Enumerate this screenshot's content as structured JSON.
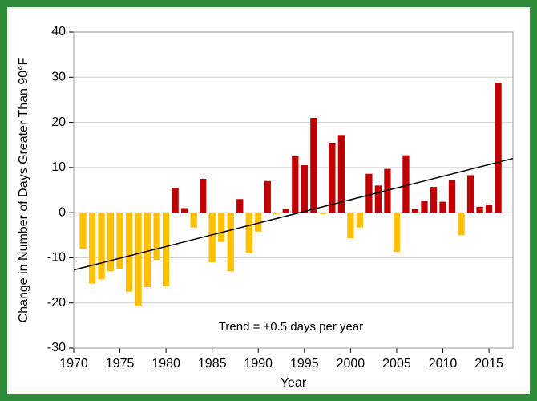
{
  "chart_data": {
    "type": "bar",
    "y_label": "Change in Number of Days Greater Than 90°F",
    "x_label": "Year",
    "annotation": "Trend = +0.5 days per year",
    "x": [
      1971,
      1972,
      1973,
      1974,
      1975,
      1976,
      1977,
      1978,
      1979,
      1980,
      1981,
      1982,
      1983,
      1984,
      1985,
      1986,
      1987,
      1988,
      1989,
      1990,
      1991,
      1992,
      1993,
      1994,
      1995,
      1996,
      1997,
      1998,
      1999,
      2000,
      2001,
      2002,
      2003,
      2004,
      2005,
      2006,
      2007,
      2008,
      2009,
      2010,
      2011,
      2012,
      2013,
      2014,
      2015,
      2016
    ],
    "values": [
      -8,
      -15.7,
      -14.8,
      -13,
      -12.5,
      -17.5,
      -20.8,
      -16.5,
      -10.5,
      -16.3,
      5.5,
      1,
      -3.3,
      7.5,
      -11,
      -6.5,
      -13,
      3,
      -9,
      -4.2,
      7,
      -0.3,
      0.8,
      12.5,
      10.5,
      21,
      -0.3,
      15.5,
      17.2,
      -5.7,
      -3.3,
      8.6,
      6,
      9.7,
      -8.7,
      12.7,
      0.8,
      2.6,
      5.7,
      2.4,
      7.2,
      -5,
      8.3,
      1.3,
      1.8,
      28.8
    ],
    "positive_color": "#c00000",
    "negative_color": "#ffc000",
    "trend": {
      "x": [
        1970,
        2017.6
      ],
      "y": [
        -12.7,
        12
      ],
      "color": "#000000"
    },
    "xlim": [
      1970,
      2017.6
    ],
    "xticks": [
      1970,
      1975,
      1980,
      1985,
      1990,
      1995,
      2000,
      2005,
      2010,
      2015
    ],
    "ylim": [
      -30,
      40
    ],
    "yticks": [
      -30,
      -20,
      -10,
      0,
      10,
      20,
      30,
      40
    ],
    "grid": true
  }
}
